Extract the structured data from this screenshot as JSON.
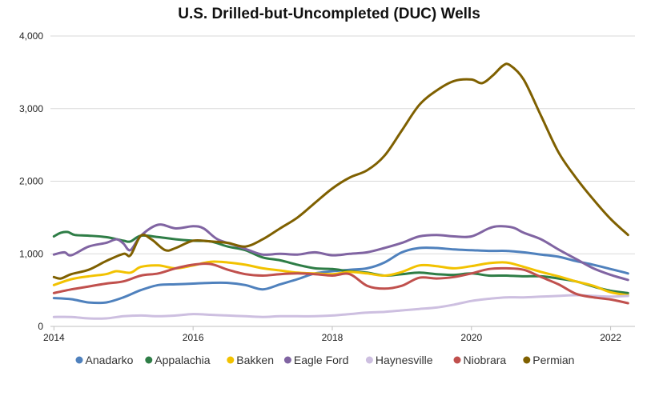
{
  "chart_data": {
    "type": "line",
    "title": "U.S. Drilled-but-Uncompleted (DUC) Wells",
    "xlabel": "",
    "ylabel": "",
    "xlim": [
      2013.95,
      2022.35
    ],
    "ylim": [
      0,
      4000
    ],
    "x_ticks": [
      2014,
      2016,
      2018,
      2020,
      2022
    ],
    "x_tick_labels": [
      "2014",
      "2016",
      "2018",
      "2020",
      "2022"
    ],
    "y_ticks": [
      0,
      1000,
      2000,
      3000,
      4000
    ],
    "y_tick_labels": [
      "0",
      "1,000",
      "2,000",
      "3,000",
      "4,000"
    ],
    "grid": "horizontal",
    "legend": "bottom",
    "series": [
      {
        "name": "Anadarko",
        "color": "#4f81bd",
        "points": [
          [
            2014.0,
            390
          ],
          [
            2014.25,
            375
          ],
          [
            2014.5,
            330
          ],
          [
            2014.75,
            330
          ],
          [
            2015.0,
            400
          ],
          [
            2015.25,
            500
          ],
          [
            2015.5,
            570
          ],
          [
            2015.75,
            580
          ],
          [
            2016.0,
            590
          ],
          [
            2016.25,
            600
          ],
          [
            2016.5,
            600
          ],
          [
            2016.75,
            570
          ],
          [
            2017.0,
            510
          ],
          [
            2017.25,
            580
          ],
          [
            2017.5,
            650
          ],
          [
            2017.75,
            730
          ],
          [
            2018.0,
            760
          ],
          [
            2018.25,
            780
          ],
          [
            2018.5,
            800
          ],
          [
            2018.75,
            880
          ],
          [
            2019.0,
            1020
          ],
          [
            2019.25,
            1080
          ],
          [
            2019.5,
            1080
          ],
          [
            2019.75,
            1060
          ],
          [
            2020.0,
            1050
          ],
          [
            2020.25,
            1040
          ],
          [
            2020.5,
            1040
          ],
          [
            2020.75,
            1020
          ],
          [
            2021.0,
            990
          ],
          [
            2021.25,
            960
          ],
          [
            2021.5,
            900
          ],
          [
            2021.75,
            850
          ],
          [
            2022.0,
            790
          ],
          [
            2022.25,
            730
          ]
        ]
      },
      {
        "name": "Appalachia",
        "color": "#2e7d46",
        "points": [
          [
            2014.0,
            1240
          ],
          [
            2014.1,
            1290
          ],
          [
            2014.2,
            1300
          ],
          [
            2014.3,
            1260
          ],
          [
            2014.5,
            1250
          ],
          [
            2014.75,
            1230
          ],
          [
            2015.0,
            1180
          ],
          [
            2015.1,
            1170
          ],
          [
            2015.25,
            1250
          ],
          [
            2015.5,
            1230
          ],
          [
            2015.75,
            1200
          ],
          [
            2016.0,
            1180
          ],
          [
            2016.25,
            1170
          ],
          [
            2016.5,
            1100
          ],
          [
            2016.75,
            1050
          ],
          [
            2017.0,
            950
          ],
          [
            2017.25,
            910
          ],
          [
            2017.5,
            850
          ],
          [
            2017.75,
            800
          ],
          [
            2018.0,
            790
          ],
          [
            2018.25,
            760
          ],
          [
            2018.5,
            740
          ],
          [
            2018.75,
            700
          ],
          [
            2019.0,
            720
          ],
          [
            2019.25,
            740
          ],
          [
            2019.5,
            720
          ],
          [
            2019.75,
            710
          ],
          [
            2020.0,
            730
          ],
          [
            2020.25,
            700
          ],
          [
            2020.5,
            700
          ],
          [
            2020.75,
            690
          ],
          [
            2021.0,
            690
          ],
          [
            2021.25,
            660
          ],
          [
            2021.5,
            620
          ],
          [
            2021.75,
            550
          ],
          [
            2022.0,
            490
          ],
          [
            2022.25,
            460
          ]
        ]
      },
      {
        "name": "Bakken",
        "color": "#f2c200",
        "points": [
          [
            2014.0,
            570
          ],
          [
            2014.25,
            650
          ],
          [
            2014.5,
            690
          ],
          [
            2014.75,
            720
          ],
          [
            2014.9,
            760
          ],
          [
            2015.1,
            740
          ],
          [
            2015.25,
            820
          ],
          [
            2015.5,
            840
          ],
          [
            2015.75,
            800
          ],
          [
            2016.0,
            840
          ],
          [
            2016.25,
            890
          ],
          [
            2016.5,
            880
          ],
          [
            2016.75,
            850
          ],
          [
            2017.0,
            800
          ],
          [
            2017.25,
            770
          ],
          [
            2017.5,
            740
          ],
          [
            2017.75,
            730
          ],
          [
            2018.0,
            720
          ],
          [
            2018.25,
            750
          ],
          [
            2018.5,
            730
          ],
          [
            2018.75,
            700
          ],
          [
            2019.0,
            750
          ],
          [
            2019.25,
            840
          ],
          [
            2019.5,
            830
          ],
          [
            2019.75,
            800
          ],
          [
            2020.0,
            830
          ],
          [
            2020.25,
            870
          ],
          [
            2020.5,
            880
          ],
          [
            2020.75,
            820
          ],
          [
            2021.0,
            750
          ],
          [
            2021.25,
            690
          ],
          [
            2021.5,
            620
          ],
          [
            2021.75,
            560
          ],
          [
            2022.0,
            470
          ],
          [
            2022.25,
            430
          ]
        ]
      },
      {
        "name": "Eagle Ford",
        "color": "#8064a2",
        "points": [
          [
            2014.0,
            990
          ],
          [
            2014.15,
            1020
          ],
          [
            2014.25,
            980
          ],
          [
            2014.5,
            1100
          ],
          [
            2014.75,
            1150
          ],
          [
            2014.9,
            1200
          ],
          [
            2015.0,
            1140
          ],
          [
            2015.1,
            1050
          ],
          [
            2015.25,
            1250
          ],
          [
            2015.5,
            1400
          ],
          [
            2015.75,
            1350
          ],
          [
            2016.0,
            1380
          ],
          [
            2016.15,
            1350
          ],
          [
            2016.35,
            1200
          ],
          [
            2016.6,
            1120
          ],
          [
            2016.8,
            1050
          ],
          [
            2017.0,
            990
          ],
          [
            2017.25,
            1000
          ],
          [
            2017.5,
            990
          ],
          [
            2017.75,
            1020
          ],
          [
            2018.0,
            980
          ],
          [
            2018.25,
            1000
          ],
          [
            2018.5,
            1020
          ],
          [
            2018.75,
            1080
          ],
          [
            2019.0,
            1150
          ],
          [
            2019.25,
            1240
          ],
          [
            2019.5,
            1260
          ],
          [
            2019.75,
            1240
          ],
          [
            2020.0,
            1240
          ],
          [
            2020.25,
            1350
          ],
          [
            2020.4,
            1380
          ],
          [
            2020.6,
            1360
          ],
          [
            2020.75,
            1290
          ],
          [
            2021.0,
            1200
          ],
          [
            2021.25,
            1060
          ],
          [
            2021.5,
            930
          ],
          [
            2021.75,
            800
          ],
          [
            2022.0,
            710
          ],
          [
            2022.25,
            640
          ]
        ]
      },
      {
        "name": "Haynesville",
        "color": "#cdbfe0",
        "points": [
          [
            2014.0,
            130
          ],
          [
            2014.25,
            130
          ],
          [
            2014.5,
            110
          ],
          [
            2014.75,
            110
          ],
          [
            2015.0,
            140
          ],
          [
            2015.25,
            150
          ],
          [
            2015.5,
            140
          ],
          [
            2015.75,
            150
          ],
          [
            2016.0,
            170
          ],
          [
            2016.25,
            160
          ],
          [
            2016.5,
            150
          ],
          [
            2016.75,
            140
          ],
          [
            2017.0,
            130
          ],
          [
            2017.25,
            140
          ],
          [
            2017.5,
            140
          ],
          [
            2017.75,
            140
          ],
          [
            2018.0,
            150
          ],
          [
            2018.25,
            170
          ],
          [
            2018.5,
            190
          ],
          [
            2018.75,
            200
          ],
          [
            2019.0,
            220
          ],
          [
            2019.25,
            240
          ],
          [
            2019.5,
            260
          ],
          [
            2019.75,
            300
          ],
          [
            2020.0,
            350
          ],
          [
            2020.25,
            380
          ],
          [
            2020.5,
            400
          ],
          [
            2020.75,
            400
          ],
          [
            2021.0,
            410
          ],
          [
            2021.25,
            420
          ],
          [
            2021.5,
            430
          ],
          [
            2021.75,
            420
          ],
          [
            2022.0,
            410
          ],
          [
            2022.25,
            420
          ]
        ]
      },
      {
        "name": "Niobrara",
        "color": "#c0504d",
        "points": [
          [
            2014.0,
            460
          ],
          [
            2014.25,
            510
          ],
          [
            2014.5,
            550
          ],
          [
            2014.75,
            590
          ],
          [
            2015.0,
            620
          ],
          [
            2015.25,
            700
          ],
          [
            2015.5,
            730
          ],
          [
            2015.75,
            800
          ],
          [
            2016.0,
            850
          ],
          [
            2016.25,
            860
          ],
          [
            2016.5,
            780
          ],
          [
            2016.75,
            720
          ],
          [
            2017.0,
            700
          ],
          [
            2017.25,
            720
          ],
          [
            2017.5,
            730
          ],
          [
            2017.75,
            720
          ],
          [
            2018.0,
            700
          ],
          [
            2018.25,
            720
          ],
          [
            2018.5,
            560
          ],
          [
            2018.75,
            520
          ],
          [
            2019.0,
            560
          ],
          [
            2019.25,
            670
          ],
          [
            2019.5,
            660
          ],
          [
            2019.75,
            680
          ],
          [
            2020.0,
            730
          ],
          [
            2020.25,
            790
          ],
          [
            2020.5,
            800
          ],
          [
            2020.75,
            780
          ],
          [
            2021.0,
            680
          ],
          [
            2021.25,
            580
          ],
          [
            2021.5,
            450
          ],
          [
            2021.75,
            400
          ],
          [
            2022.0,
            370
          ],
          [
            2022.25,
            320
          ]
        ]
      },
      {
        "name": "Permian",
        "color": "#7f6000",
        "points": [
          [
            2014.0,
            680
          ],
          [
            2014.1,
            660
          ],
          [
            2014.25,
            720
          ],
          [
            2014.5,
            780
          ],
          [
            2014.75,
            900
          ],
          [
            2015.0,
            1000
          ],
          [
            2015.1,
            980
          ],
          [
            2015.25,
            1250
          ],
          [
            2015.4,
            1200
          ],
          [
            2015.6,
            1050
          ],
          [
            2015.75,
            1080
          ],
          [
            2016.0,
            1180
          ],
          [
            2016.25,
            1170
          ],
          [
            2016.5,
            1150
          ],
          [
            2016.75,
            1100
          ],
          [
            2017.0,
            1200
          ],
          [
            2017.25,
            1350
          ],
          [
            2017.5,
            1500
          ],
          [
            2017.75,
            1700
          ],
          [
            2018.0,
            1900
          ],
          [
            2018.25,
            2050
          ],
          [
            2018.5,
            2150
          ],
          [
            2018.75,
            2350
          ],
          [
            2019.0,
            2700
          ],
          [
            2019.25,
            3050
          ],
          [
            2019.5,
            3250
          ],
          [
            2019.75,
            3380
          ],
          [
            2020.0,
            3400
          ],
          [
            2020.15,
            3350
          ],
          [
            2020.3,
            3450
          ],
          [
            2020.45,
            3590
          ],
          [
            2020.55,
            3600
          ],
          [
            2020.75,
            3400
          ],
          [
            2021.0,
            2900
          ],
          [
            2021.25,
            2400
          ],
          [
            2021.5,
            2050
          ],
          [
            2021.75,
            1750
          ],
          [
            2022.0,
            1480
          ],
          [
            2022.25,
            1260
          ]
        ]
      }
    ]
  }
}
